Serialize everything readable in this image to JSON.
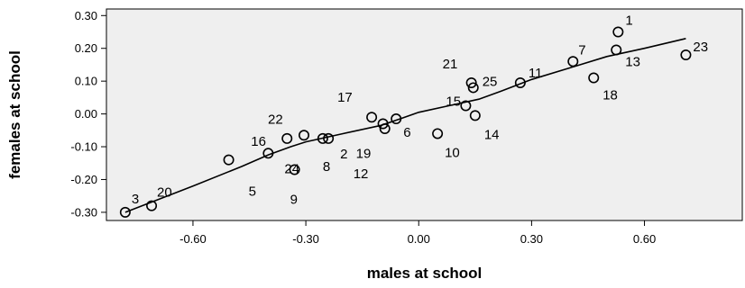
{
  "chart_data": {
    "type": "scatter",
    "xlabel": "males at school",
    "ylabel": "females at school",
    "xlim": [
      -0.83,
      0.86
    ],
    "ylim": [
      -0.325,
      0.32
    ],
    "x_ticks": [
      -0.6,
      -0.3,
      0.0,
      0.3,
      0.6
    ],
    "x_tick_labels": [
      "-0.60",
      "-0.30",
      "0.00",
      "0.30",
      "0.60"
    ],
    "y_ticks": [
      0.3,
      0.2,
      0.1,
      0.0,
      -0.1,
      -0.2,
      -0.3
    ],
    "y_tick_labels": [
      "0.30",
      "0.20",
      "0.10",
      "0.00",
      "-0.10",
      "-0.20",
      "-0.30"
    ],
    "grid": false,
    "background": "#efefef",
    "points": [
      {
        "label": "1",
        "x": 0.53,
        "y": 0.25
      },
      {
        "label": "23",
        "x": 0.71,
        "y": 0.18
      },
      {
        "label": "7",
        "x": 0.41,
        "y": 0.16
      },
      {
        "label": "13",
        "x": 0.525,
        "y": 0.195
      },
      {
        "label": "18",
        "x": 0.465,
        "y": 0.11
      },
      {
        "label": "11",
        "x": 0.27,
        "y": 0.095
      },
      {
        "label": "21",
        "x": 0.14,
        "y": 0.095
      },
      {
        "label": "25",
        "x": 0.145,
        "y": 0.08
      },
      {
        "label": "15",
        "x": 0.125,
        "y": 0.025
      },
      {
        "label": "14",
        "x": 0.15,
        "y": -0.005
      },
      {
        "label": "10",
        "x": 0.05,
        "y": -0.06
      },
      {
        "label": "17",
        "x": -0.125,
        "y": -0.01
      },
      {
        "label": "6",
        "x": -0.06,
        "y": -0.015
      },
      {
        "label": "19",
        "x": -0.095,
        "y": -0.03
      },
      {
        "label": "12",
        "x": -0.09,
        "y": -0.045
      },
      {
        "label": "22",
        "x": -0.305,
        "y": -0.065
      },
      {
        "label": "2",
        "x": -0.24,
        "y": -0.075
      },
      {
        "label": "8",
        "x": -0.255,
        "y": -0.075
      },
      {
        "label": "16",
        "x": -0.35,
        "y": -0.075
      },
      {
        "label": "24",
        "x": -0.4,
        "y": -0.12
      },
      {
        "label": "5",
        "x": -0.505,
        "y": -0.14
      },
      {
        "label": "9",
        "x": -0.33,
        "y": -0.17
      },
      {
        "label": "20",
        "x": -0.71,
        "y": -0.28
      },
      {
        "label": "3",
        "x": -0.78,
        "y": -0.3
      }
    ],
    "fit_line": [
      {
        "x": -0.78,
        "y": -0.3
      },
      {
        "x": -0.6,
        "y": -0.22
      },
      {
        "x": -0.47,
        "y": -0.16
      },
      {
        "x": -0.4,
        "y": -0.125
      },
      {
        "x": -0.34,
        "y": -0.1
      },
      {
        "x": -0.3,
        "y": -0.085
      },
      {
        "x": -0.2,
        "y": -0.06
      },
      {
        "x": -0.1,
        "y": -0.035
      },
      {
        "x": -0.05,
        "y": -0.015
      },
      {
        "x": 0.0,
        "y": 0.005
      },
      {
        "x": 0.08,
        "y": 0.025
      },
      {
        "x": 0.16,
        "y": 0.045
      },
      {
        "x": 0.22,
        "y": 0.07
      },
      {
        "x": 0.3,
        "y": 0.105
      },
      {
        "x": 0.4,
        "y": 0.14
      },
      {
        "x": 0.5,
        "y": 0.175
      },
      {
        "x": 0.6,
        "y": 0.2
      },
      {
        "x": 0.71,
        "y": 0.23
      }
    ]
  }
}
